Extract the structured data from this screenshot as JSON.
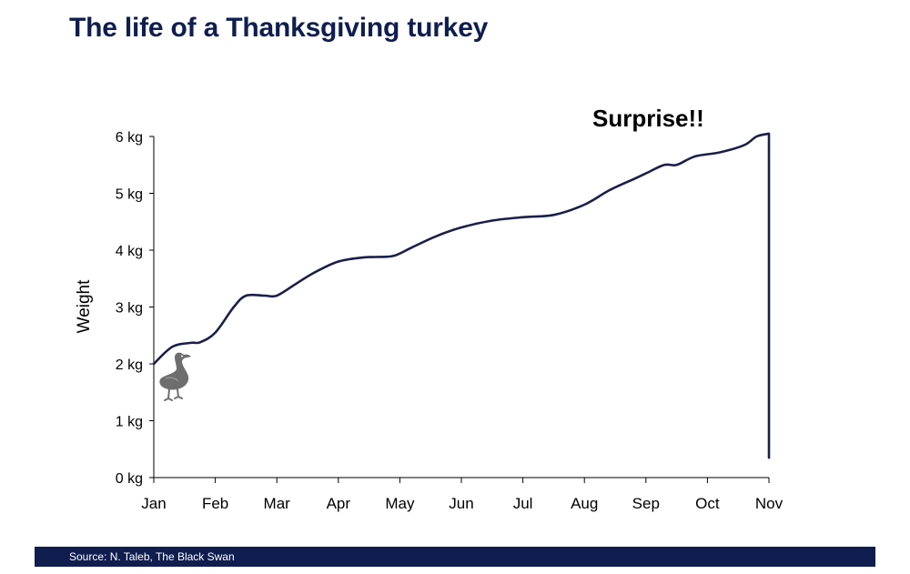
{
  "title": "The life of a Thanksgiving turkey",
  "source": "Source: N. Taleb, The Black Swan",
  "colors": {
    "title": "#0f1e4f",
    "line": "#1a1f4a",
    "footer": "#0f1e4f",
    "axis": "#000000",
    "bird": "#6e6e6e"
  },
  "icons": {
    "bird": "goose-icon"
  },
  "chart_data": {
    "type": "line",
    "ylabel": "Weight",
    "xlabel": "",
    "annotation": "Surprise!!",
    "x_ticks": [
      "Jan",
      "Feb",
      "Mar",
      "Apr",
      "May",
      "Jun",
      "Jul",
      "Aug",
      "Sep",
      "Oct",
      "Nov"
    ],
    "y_ticks": [
      "0 kg",
      "1 kg",
      "2 kg",
      "3 kg",
      "4 kg",
      "5 kg",
      "6 kg"
    ],
    "ylim": [
      0,
      6
    ],
    "xlim": [
      0,
      10
    ],
    "grid": false,
    "series": [
      {
        "x": [
          0,
          0.3,
          0.6,
          0.75,
          1.0,
          1.3,
          1.5,
          1.8,
          2.0,
          2.3,
          2.6,
          3.0,
          3.4,
          3.6,
          3.9,
          4.2,
          4.6,
          5.0,
          5.5,
          6.0,
          6.5,
          7.0,
          7.4,
          7.8,
          8.0,
          8.3,
          8.5,
          8.8,
          9.2,
          9.6,
          9.8,
          10.0,
          10.0
        ],
        "y": [
          2.0,
          2.3,
          2.37,
          2.38,
          2.55,
          3.0,
          3.2,
          3.2,
          3.2,
          3.4,
          3.6,
          3.8,
          3.87,
          3.88,
          3.9,
          4.05,
          4.25,
          4.4,
          4.52,
          4.58,
          4.62,
          4.8,
          5.05,
          5.25,
          5.35,
          5.5,
          5.5,
          5.65,
          5.72,
          5.85,
          6.0,
          6.05,
          0.35
        ]
      }
    ]
  }
}
